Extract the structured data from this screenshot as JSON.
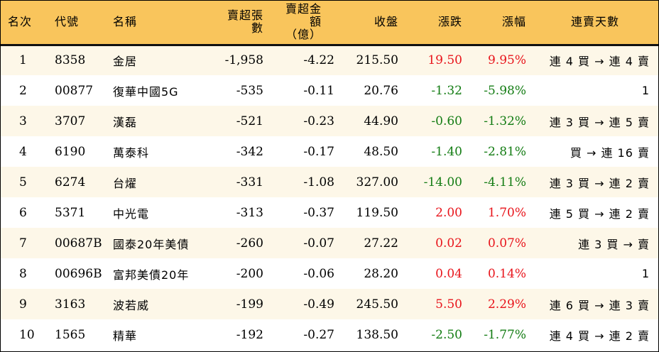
{
  "colors": {
    "header_bg": "#f9c55c",
    "odd_row_bg": "#fdf7e8",
    "up": "#e8141b",
    "down": "#137c13"
  },
  "headers": {
    "rank": "名次",
    "code": "代號",
    "name": "名稱",
    "net_sell_shares": "賣超張數",
    "net_sell_amount_1": "賣超金額",
    "net_sell_amount_2": "（億）",
    "close": "收盤",
    "change": "漲跌",
    "change_pct": "漲幅",
    "streak": "連賣天數"
  },
  "rows": [
    {
      "rank": "1",
      "code": "8358",
      "name": "金居",
      "shares": "-1,958",
      "amount": "-4.22",
      "close": "215.50",
      "change": "19.50",
      "pct": "9.95%",
      "dir": "up",
      "streak": "連 4 買 → 連 4 賣"
    },
    {
      "rank": "2",
      "code": "00877",
      "name": "復華中國5G",
      "shares": "-535",
      "amount": "-0.11",
      "close": "20.76",
      "change": "-1.32",
      "pct": "-5.98%",
      "dir": "down",
      "streak": "1"
    },
    {
      "rank": "3",
      "code": "3707",
      "name": "漢磊",
      "shares": "-521",
      "amount": "-0.23",
      "close": "44.90",
      "change": "-0.60",
      "pct": "-1.32%",
      "dir": "down",
      "streak": "連 3 買 → 連 5 賣"
    },
    {
      "rank": "4",
      "code": "6190",
      "name": "萬泰科",
      "shares": "-342",
      "amount": "-0.17",
      "close": "48.50",
      "change": "-1.40",
      "pct": "-2.81%",
      "dir": "down",
      "streak": "買 → 連 16 賣"
    },
    {
      "rank": "5",
      "code": "6274",
      "name": "台燿",
      "shares": "-331",
      "amount": "-1.08",
      "close": "327.00",
      "change": "-14.00",
      "pct": "-4.11%",
      "dir": "down",
      "streak": "連 3 買 → 連 2 賣"
    },
    {
      "rank": "6",
      "code": "5371",
      "name": "中光電",
      "shares": "-313",
      "amount": "-0.37",
      "close": "119.50",
      "change": "2.00",
      "pct": "1.70%",
      "dir": "up",
      "streak": "連 5 買 → 連 2 賣"
    },
    {
      "rank": "7",
      "code": "00687B",
      "name": "國泰20年美債",
      "shares": "-260",
      "amount": "-0.07",
      "close": "27.22",
      "change": "0.02",
      "pct": "0.07%",
      "dir": "up",
      "streak": "連 3 買 → 賣"
    },
    {
      "rank": "8",
      "code": "00696B",
      "name": "富邦美債20年",
      "shares": "-200",
      "amount": "-0.06",
      "close": "28.20",
      "change": "0.04",
      "pct": "0.14%",
      "dir": "up",
      "streak": "1"
    },
    {
      "rank": "9",
      "code": "3163",
      "name": "波若威",
      "shares": "-199",
      "amount": "-0.49",
      "close": "245.50",
      "change": "5.50",
      "pct": "2.29%",
      "dir": "up",
      "streak": "連 6 買 → 連 3 賣"
    },
    {
      "rank": "10",
      "code": "1565",
      "name": "精華",
      "shares": "-192",
      "amount": "-0.27",
      "close": "138.50",
      "change": "-2.50",
      "pct": "-1.77%",
      "dir": "down",
      "streak": "連 4 買 → 連 2 賣"
    }
  ]
}
